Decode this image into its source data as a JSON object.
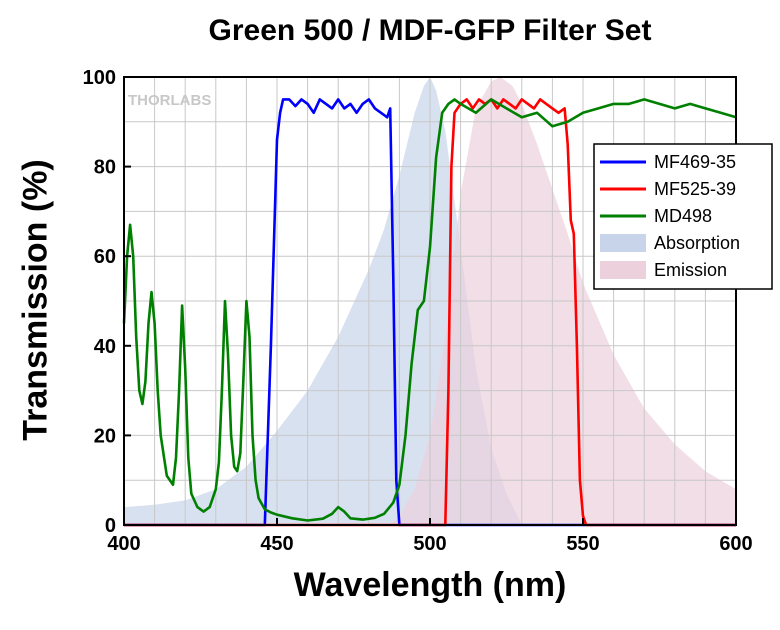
{
  "chart_data": {
    "type": "line",
    "title": "Green 500 / MDF-GFP Filter Set",
    "xlabel": "Wavelength (nm)",
    "ylabel": "Transmission (%)",
    "xlim": [
      400,
      600
    ],
    "ylim": [
      0,
      100
    ],
    "xticks": [
      "400",
      "450",
      "500",
      "550",
      "600"
    ],
    "yticks": [
      "0",
      "20",
      "40",
      "60",
      "80",
      "100"
    ],
    "grid": true,
    "legend_position": "upper-right",
    "watermark": "THORLABS",
    "series": [
      {
        "name": "Absorption",
        "kind": "area",
        "color": "#c8d4ea",
        "x": [
          400,
          410,
          420,
          430,
          440,
          450,
          460,
          470,
          480,
          485,
          490,
          495,
          498,
          500,
          502,
          505,
          510,
          515,
          520,
          525,
          530
        ],
        "y": [
          4,
          4.5,
          5.5,
          8,
          13,
          21,
          30,
          42,
          57,
          66,
          78,
          92,
          98,
          100,
          97,
          88,
          62,
          35,
          17,
          7,
          0
        ]
      },
      {
        "name": "Emission",
        "kind": "area",
        "color": "#ecd0dc",
        "x": [
          487,
          490,
          495,
          500,
          505,
          510,
          515,
          520,
          523,
          527,
          530,
          535,
          540,
          545,
          550,
          560,
          570,
          580,
          590,
          600
        ],
        "y": [
          0,
          2,
          8,
          20,
          42,
          74,
          93,
          99,
          100,
          98,
          94,
          85,
          75,
          65,
          54,
          38,
          26,
          18,
          12,
          8
        ]
      },
      {
        "name": "MF469-35",
        "kind": "line",
        "color": "#0000ff",
        "x": [
          400,
          446,
          448,
          450,
          451,
          452,
          454,
          456,
          458,
          460,
          462,
          464,
          466,
          468,
          470,
          472,
          474,
          476,
          478,
          480,
          482,
          484,
          486,
          487,
          488,
          489,
          490,
          600
        ],
        "y": [
          0,
          0,
          40,
          86,
          92,
          95,
          95,
          93.5,
          95,
          94,
          92,
          95,
          94,
          93,
          95,
          93,
          94,
          92,
          94,
          95,
          93,
          92,
          91,
          93,
          55,
          10,
          0,
          0
        ]
      },
      {
        "name": "MF525-39",
        "kind": "line",
        "color": "#ff0000",
        "x": [
          400,
          505,
          506,
          507,
          508,
          510,
          512,
          514,
          516,
          518,
          520,
          522,
          524,
          526,
          528,
          530,
          532,
          534,
          536,
          538,
          540,
          542,
          544,
          545,
          546,
          547,
          548,
          549,
          550,
          551,
          552,
          600
        ],
        "y": [
          0,
          0,
          30,
          80,
          92,
          94,
          95,
          93,
          95,
          94,
          95,
          93,
          95,
          94,
          93,
          95,
          94,
          93,
          95,
          94,
          93,
          92,
          93,
          85,
          68,
          65,
          40,
          10,
          2,
          0,
          0,
          0
        ]
      },
      {
        "name": "MD498",
        "kind": "line",
        "color": "#008000",
        "x": [
          400,
          401,
          402,
          403,
          404,
          405,
          406,
          407,
          408,
          409,
          410,
          411,
          412,
          414,
          416,
          417,
          418,
          419,
          420,
          421,
          422,
          424,
          426,
          428,
          430,
          431,
          432,
          433,
          434,
          435,
          436,
          437,
          438,
          439,
          440,
          441,
          442,
          443,
          444,
          446,
          448,
          450,
          455,
          460,
          465,
          468,
          470,
          472,
          474,
          478,
          482,
          485,
          488,
          490,
          492,
          494,
          496,
          498,
          500,
          502,
          504,
          506,
          508,
          510,
          515,
          520,
          525,
          530,
          535,
          540,
          545,
          550,
          555,
          560,
          565,
          570,
          575,
          580,
          585,
          590,
          595,
          600
        ],
        "y": [
          45,
          60,
          67,
          60,
          42,
          30,
          27,
          32,
          45,
          52,
          45,
          30,
          20,
          11,
          9,
          15,
          30,
          49,
          35,
          15,
          7,
          4,
          3,
          4,
          8,
          14,
          30,
          50,
          38,
          20,
          13,
          12,
          16,
          32,
          50,
          42,
          20,
          10,
          6,
          3.5,
          2.8,
          2.3,
          1.5,
          1,
          1.4,
          2.5,
          4,
          3,
          1.5,
          1.2,
          1.6,
          2.5,
          5,
          9,
          20,
          36,
          48,
          50,
          62,
          82,
          92,
          94,
          95,
          94,
          92,
          95,
          93,
          91,
          92,
          89,
          90,
          92,
          93,
          94,
          94,
          95,
          94,
          93,
          94,
          93,
          92,
          91
        ]
      }
    ]
  }
}
